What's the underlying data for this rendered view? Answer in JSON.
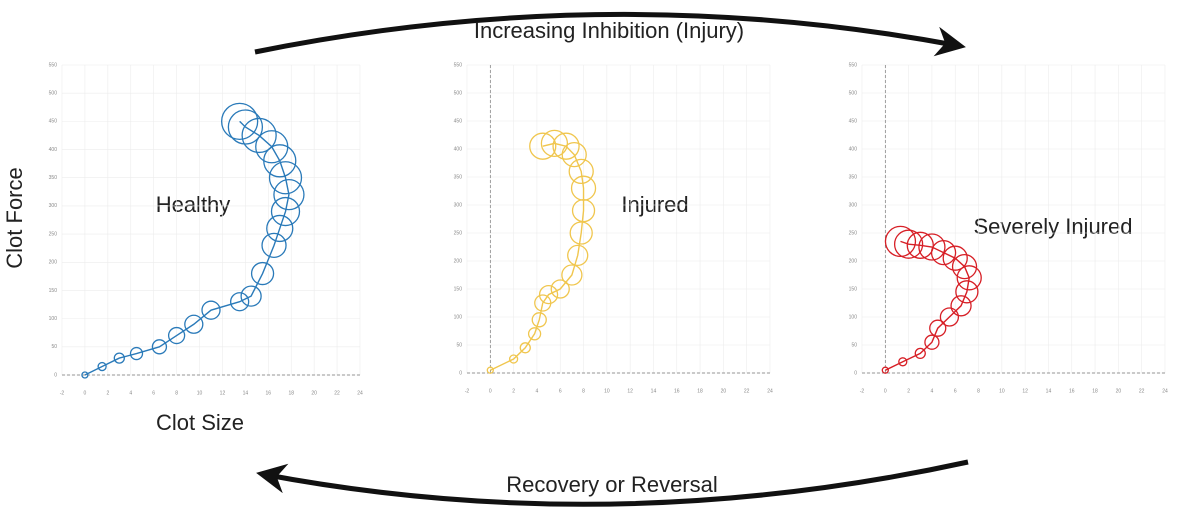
{
  "annotations": {
    "top_arrow": "Increasing Inhibition (Injury)",
    "bottom_arrow": "Recovery or Reversal"
  },
  "chart_data": [
    {
      "type": "scatter",
      "label": "Healthy",
      "xlabel": "Clot Size",
      "ylabel": "Clot Force",
      "color": "#2a7ab9",
      "x": [
        0,
        1.5,
        3,
        4.5,
        6.5,
        8,
        9.5,
        11,
        13.5,
        14.5,
        15.5,
        16.5,
        17,
        17.5,
        17.8,
        17.5,
        17,
        16.3,
        15.2,
        14,
        13.5
      ],
      "y": [
        0,
        15,
        30,
        38,
        50,
        70,
        90,
        115,
        130,
        140,
        180,
        230,
        260,
        290,
        320,
        350,
        380,
        405,
        425,
        440,
        450
      ],
      "sizes": [
        3,
        4,
        5,
        6,
        7,
        8,
        9,
        9,
        9,
        10,
        11,
        12,
        13,
        14,
        15,
        16,
        16,
        16,
        17,
        17,
        18
      ],
      "xlim": [
        -2,
        24
      ],
      "ylim": [
        0,
        550
      ],
      "xticks": [
        -2,
        0,
        2,
        4,
        6,
        8,
        10,
        12,
        14,
        16,
        18,
        20,
        22,
        24
      ],
      "yticks": [
        0,
        50,
        100,
        150,
        200,
        250,
        300,
        350,
        400,
        450,
        500,
        550
      ],
      "grid": true,
      "zero_lines": "y"
    },
    {
      "type": "scatter",
      "label": "Injured",
      "color": "#f0c64e",
      "x": [
        0,
        2,
        3,
        3.8,
        4.2,
        4.5,
        5,
        6,
        7,
        7.5,
        7.8,
        8,
        8,
        7.8,
        7.2,
        6.5,
        5.5,
        4.5
      ],
      "y": [
        5,
        25,
        45,
        70,
        95,
        125,
        140,
        150,
        175,
        210,
        250,
        290,
        330,
        360,
        390,
        405,
        410,
        405
      ],
      "sizes": [
        3,
        4,
        5,
        6,
        7,
        8,
        9,
        9,
        10,
        10,
        11,
        11,
        12,
        12,
        12,
        13,
        13,
        13
      ],
      "xlim": [
        -2,
        24
      ],
      "ylim": [
        0,
        550
      ],
      "xticks": [
        -2,
        0,
        2,
        4,
        6,
        8,
        10,
        12,
        14,
        16,
        18,
        20,
        22,
        24
      ],
      "yticks": [
        0,
        50,
        100,
        150,
        200,
        250,
        300,
        350,
        400,
        450,
        500,
        550
      ],
      "grid": true,
      "zero_lines": "both"
    },
    {
      "type": "scatter",
      "label": "Severely Injured",
      "color": "#d71f26",
      "x": [
        0,
        1.5,
        3,
        4,
        4.5,
        5.5,
        6.5,
        7,
        7.2,
        6.8,
        6,
        5,
        4,
        3,
        2,
        1.3
      ],
      "y": [
        5,
        20,
        35,
        55,
        80,
        100,
        120,
        145,
        170,
        190,
        205,
        215,
        225,
        228,
        230,
        235
      ],
      "sizes": [
        3,
        4,
        5,
        7,
        8,
        9,
        10,
        11,
        12,
        12,
        12,
        12,
        13,
        13,
        14,
        15
      ],
      "xlim": [
        -2,
        24
      ],
      "ylim": [
        0,
        550
      ],
      "xticks": [
        -2,
        0,
        2,
        4,
        6,
        8,
        10,
        12,
        14,
        16,
        18,
        20,
        22,
        24
      ],
      "yticks": [
        0,
        50,
        100,
        150,
        200,
        250,
        300,
        350,
        400,
        450,
        500,
        550
      ],
      "grid": true,
      "zero_lines": "both"
    }
  ]
}
